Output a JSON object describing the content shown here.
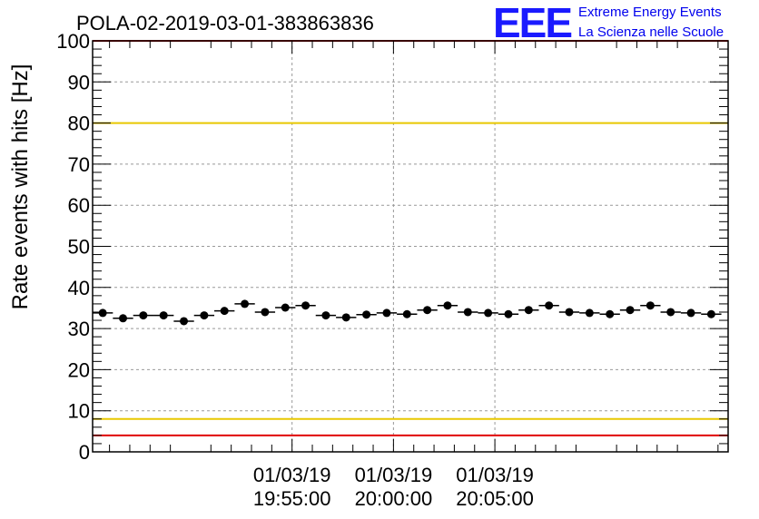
{
  "chart_data": {
    "type": "scatter",
    "title": "POLA-02-2019-03-01-383863836",
    "ylabel": "Rate events with hits [Hz]",
    "xlabel": "",
    "ylim": [
      0,
      100
    ],
    "yticks": [
      0,
      10,
      20,
      30,
      40,
      50,
      60,
      70,
      80,
      90,
      100
    ],
    "xlim_seconds": [
      -590,
      1290
    ],
    "xticks": [
      {
        "t": 0,
        "date": "01/03/19",
        "time": "19:55:00"
      },
      {
        "t": 300,
        "date": "01/03/19",
        "time": "20:00:00"
      },
      {
        "t": 600,
        "date": "01/03/19",
        "time": "20:05:00"
      }
    ],
    "bin_width_seconds": 60,
    "series": [
      {
        "name": "rate",
        "x_seconds": [
          -560,
          -500,
          -440,
          -380,
          -320,
          -260,
          -200,
          -140,
          -80,
          -20,
          40,
          100,
          160,
          220,
          280,
          340,
          400,
          460,
          520,
          580,
          640,
          700,
          760,
          820,
          880,
          940,
          1000,
          1060,
          1120,
          1180,
          1240
        ],
        "values": [
          33.8,
          32.5,
          33.2,
          33.2,
          31.8,
          33.2,
          34.3,
          36.0,
          34.0,
          35.1,
          35.6,
          33.2,
          32.7,
          33.4,
          33.8,
          33.5,
          34.5,
          35.6,
          34.0,
          33.8,
          33.5,
          34.5,
          35.6,
          34.0,
          33.8,
          33.5,
          34.5,
          35.6,
          34.0,
          33.8,
          33.5
        ],
        "x": [
          -560,
          -500,
          -440,
          -380,
          -320,
          -260,
          -200,
          -140,
          -80,
          -20,
          40,
          100,
          160,
          220,
          280,
          340,
          400,
          460,
          520,
          580,
          640,
          700,
          760,
          820,
          880,
          940,
          1000,
          1060,
          1120,
          1180,
          1240
        ]
      }
    ],
    "reference_lines": [
      {
        "name": "red-upper",
        "y": 100,
        "color": "#e00000"
      },
      {
        "name": "yellow-upper",
        "y": 80,
        "color": "#e8c800"
      },
      {
        "name": "yellow-lower",
        "y": 8,
        "color": "#e8c800"
      },
      {
        "name": "red-lower",
        "y": 4,
        "color": "#e00000"
      }
    ],
    "grid": true,
    "legend": "none"
  },
  "logo": {
    "letters": "EEE",
    "line1": "Extreme Energy Events",
    "line2": "La Scienza nelle Scuole",
    "color": "#1a1aff"
  }
}
